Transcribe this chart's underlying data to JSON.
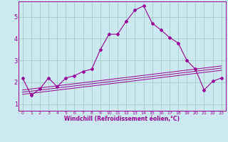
{
  "xlabel": "Windchill (Refroidissement éolien,°C)",
  "background_color": "#cce8f0",
  "line_color": "#990099",
  "grid_color": "#99ccbb",
  "xlim": [
    -0.5,
    23.5
  ],
  "ylim": [
    0.7,
    5.7
  ],
  "xticks": [
    0,
    1,
    2,
    3,
    4,
    5,
    6,
    7,
    8,
    9,
    10,
    11,
    12,
    13,
    14,
    15,
    16,
    17,
    18,
    19,
    20,
    21,
    22,
    23
  ],
  "yticks": [
    1,
    2,
    3,
    4,
    5
  ],
  "line1_x": [
    0,
    1,
    2,
    3,
    4,
    5,
    6,
    7,
    8,
    9,
    10,
    11,
    12,
    13,
    14,
    15,
    16,
    17,
    18,
    19,
    20,
    21,
    22,
    23
  ],
  "line1_y": [
    2.2,
    1.4,
    1.7,
    2.2,
    1.8,
    2.2,
    2.3,
    2.5,
    2.6,
    3.5,
    4.2,
    4.2,
    4.8,
    5.3,
    5.5,
    4.7,
    4.4,
    4.05,
    3.8,
    3.0,
    2.6,
    1.65,
    2.05,
    2.2
  ],
  "line2_x": [
    0,
    23
  ],
  "line2_y": [
    1.45,
    2.55
  ],
  "line3_x": [
    0,
    23
  ],
  "line3_y": [
    1.55,
    2.65
  ],
  "line4_x": [
    0,
    23
  ],
  "line4_y": [
    1.65,
    2.75
  ],
  "xlabel_fontsize": 5.5,
  "xtick_fontsize": 4.5,
  "ytick_fontsize": 6.0
}
